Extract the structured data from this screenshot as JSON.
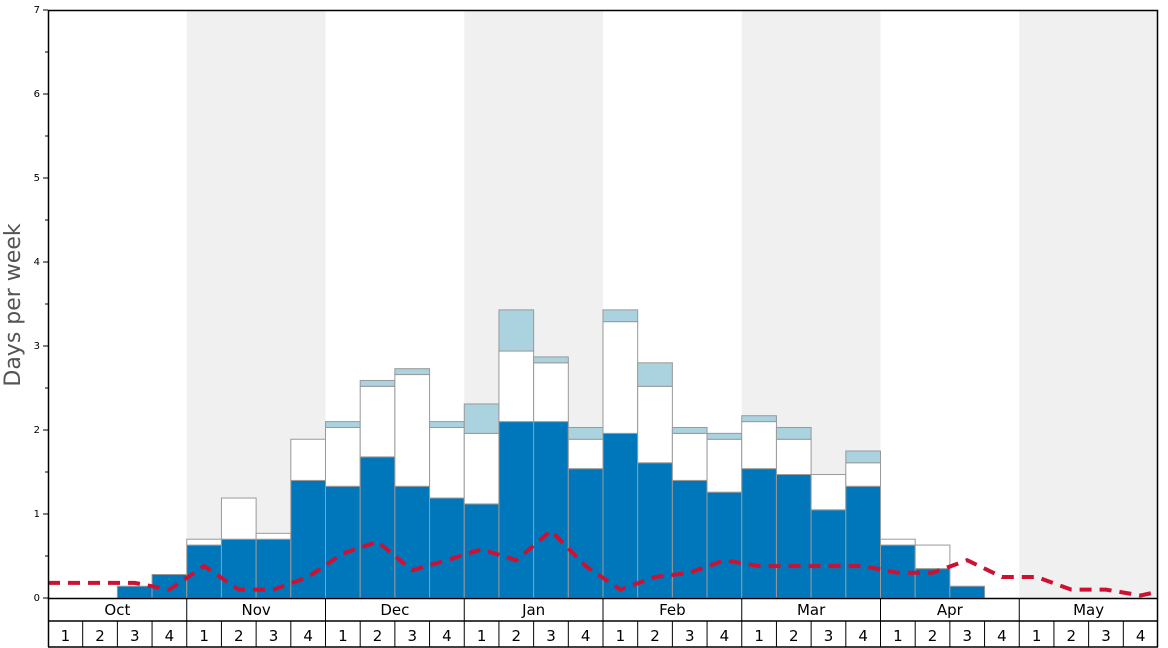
{
  "chart_data": {
    "type": "bar",
    "ylabel": "Days per week",
    "ylim": [
      0,
      7
    ],
    "yticks": [
      0,
      1,
      2,
      3,
      4,
      5,
      6,
      7
    ],
    "months": [
      "Oct",
      "Nov",
      "Dec",
      "Jan",
      "Feb",
      "Mar",
      "Apr",
      "May"
    ],
    "weeks": [
      "1",
      "2",
      "3",
      "4"
    ],
    "colors": {
      "primary": "#0077bb",
      "secondary": "#ffffff",
      "tertiary": "#aad3df",
      "line": "#cc1133",
      "band": "#f0f0f0"
    },
    "series": [
      {
        "values": [
          0,
          0,
          0.14,
          0.28,
          0.63,
          0.7,
          0.7,
          1.4,
          1.33,
          1.68,
          1.33,
          1.19,
          1.12,
          2.1,
          2.1,
          1.54,
          1.96,
          1.61,
          1.4,
          1.26,
          1.54,
          1.47,
          1.05,
          1.33,
          0.63,
          0.35,
          0.14,
          0,
          0,
          0,
          0,
          0
        ]
      },
      {
        "values": [
          0,
          0,
          0,
          0,
          0.07,
          0.49,
          0.07,
          0.49,
          0.7,
          0.84,
          1.33,
          0.84,
          0.84,
          0.84,
          0.7,
          0.35,
          1.33,
          0.91,
          0.56,
          0.63,
          0.56,
          0.42,
          0.42,
          0.28,
          0.07,
          0.28,
          0,
          0,
          0,
          0,
          0,
          0
        ]
      },
      {
        "values": [
          0,
          0,
          0,
          0,
          0,
          0,
          0,
          0,
          0.07,
          0.07,
          0.07,
          0.07,
          0.35,
          0.49,
          0.07,
          0.14,
          0.14,
          0.28,
          0.07,
          0.07,
          0.07,
          0.14,
          0,
          0.14,
          0,
          0,
          0,
          0,
          0,
          0,
          0,
          0
        ]
      },
      {
        "values": [
          0.18,
          0.18,
          0.18,
          0.1,
          0.38,
          0.1,
          0.1,
          0.25,
          0.53,
          0.67,
          0.33,
          0.45,
          0.58,
          0.45,
          0.8,
          0.38,
          0.1,
          0.25,
          0.3,
          0.45,
          0.38,
          0.38,
          0.38,
          0.38,
          0.3,
          0.3,
          0.45,
          0.25,
          0.25,
          0.1,
          0.1,
          0.03
        ]
      }
    ]
  }
}
